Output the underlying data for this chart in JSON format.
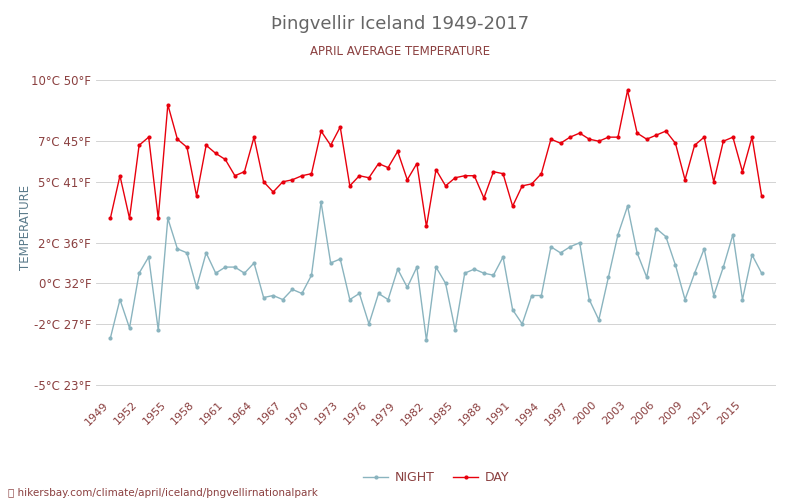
{
  "title": "Þingvellir Iceland 1949-2017",
  "subtitle": "APRIL AVERAGE TEMPERATURE",
  "ylabel": "TEMPERATURE",
  "xlabel_url": "⌖ hikersbay.com/climate/april/iceland/þngvellirnationalpark",
  "legend_night": "NIGHT",
  "legend_day": "DAY",
  "years": [
    1949,
    1950,
    1951,
    1952,
    1953,
    1954,
    1955,
    1956,
    1957,
    1958,
    1959,
    1960,
    1961,
    1962,
    1963,
    1964,
    1965,
    1966,
    1967,
    1968,
    1969,
    1970,
    1971,
    1972,
    1973,
    1974,
    1975,
    1976,
    1977,
    1978,
    1979,
    1980,
    1981,
    1982,
    1983,
    1984,
    1985,
    1986,
    1987,
    1988,
    1989,
    1990,
    1991,
    1992,
    1993,
    1994,
    1995,
    1996,
    1997,
    1998,
    1999,
    2000,
    2001,
    2002,
    2003,
    2004,
    2005,
    2006,
    2007,
    2008,
    2009,
    2010,
    2011,
    2012,
    2013,
    2014,
    2015,
    2016,
    2017
  ],
  "day": [
    3.2,
    5.3,
    3.2,
    6.8,
    7.2,
    3.2,
    8.8,
    7.1,
    6.7,
    4.3,
    6.8,
    6.4,
    6.1,
    5.3,
    5.5,
    7.2,
    5.0,
    4.5,
    5.0,
    5.1,
    5.3,
    5.4,
    7.5,
    6.8,
    7.7,
    4.8,
    5.3,
    5.2,
    5.9,
    5.7,
    6.5,
    5.1,
    5.9,
    2.8,
    5.6,
    4.8,
    5.2,
    5.3,
    5.3,
    4.2,
    5.5,
    5.4,
    3.8,
    4.8,
    4.9,
    5.4,
    7.1,
    6.9,
    7.2,
    7.4,
    7.1,
    7.0,
    7.2,
    7.2,
    9.5,
    7.4,
    7.1,
    7.3,
    7.5,
    6.9,
    5.1,
    6.8,
    7.2,
    5.0,
    7.0,
    7.2,
    5.5,
    7.2,
    4.3
  ],
  "night": [
    -2.7,
    -0.8,
    -2.2,
    0.5,
    1.3,
    -2.3,
    3.2,
    1.7,
    1.5,
    -0.2,
    1.5,
    0.5,
    0.8,
    0.8,
    0.5,
    1.0,
    -0.7,
    -0.6,
    -0.8,
    -0.3,
    -0.5,
    0.4,
    4.0,
    1.0,
    1.2,
    -0.8,
    -0.5,
    -2.0,
    -0.5,
    -0.8,
    0.7,
    -0.2,
    0.8,
    -2.8,
    0.8,
    0.0,
    -2.3,
    0.5,
    0.7,
    0.5,
    0.4,
    1.3,
    -1.3,
    -2.0,
    -0.6,
    -0.6,
    1.8,
    1.5,
    1.8,
    2.0,
    -0.8,
    -1.8,
    0.3,
    2.4,
    3.8,
    1.5,
    0.3,
    2.7,
    2.3,
    0.9,
    -0.8,
    0.5,
    1.7,
    -0.6,
    0.8,
    2.4,
    -0.8,
    1.4,
    0.5
  ],
  "ylim": [
    -5.5,
    11.0
  ],
  "yticks_c": [
    -5,
    -2,
    0,
    2,
    5,
    7,
    10
  ],
  "yticks_f": [
    23,
    27,
    32,
    36,
    41,
    45,
    50
  ],
  "day_color": "#e8000d",
  "night_color": "#8ab4bf",
  "grid_color": "#cccccc",
  "title_color": "#666666",
  "subtitle_color": "#8b4040",
  "label_color": "#8b4040",
  "ylabel_color": "#5a7a8a",
  "bg_color": "#ffffff",
  "url_color": "#8b4040",
  "figsize": [
    8.0,
    5.0
  ],
  "dpi": 100
}
